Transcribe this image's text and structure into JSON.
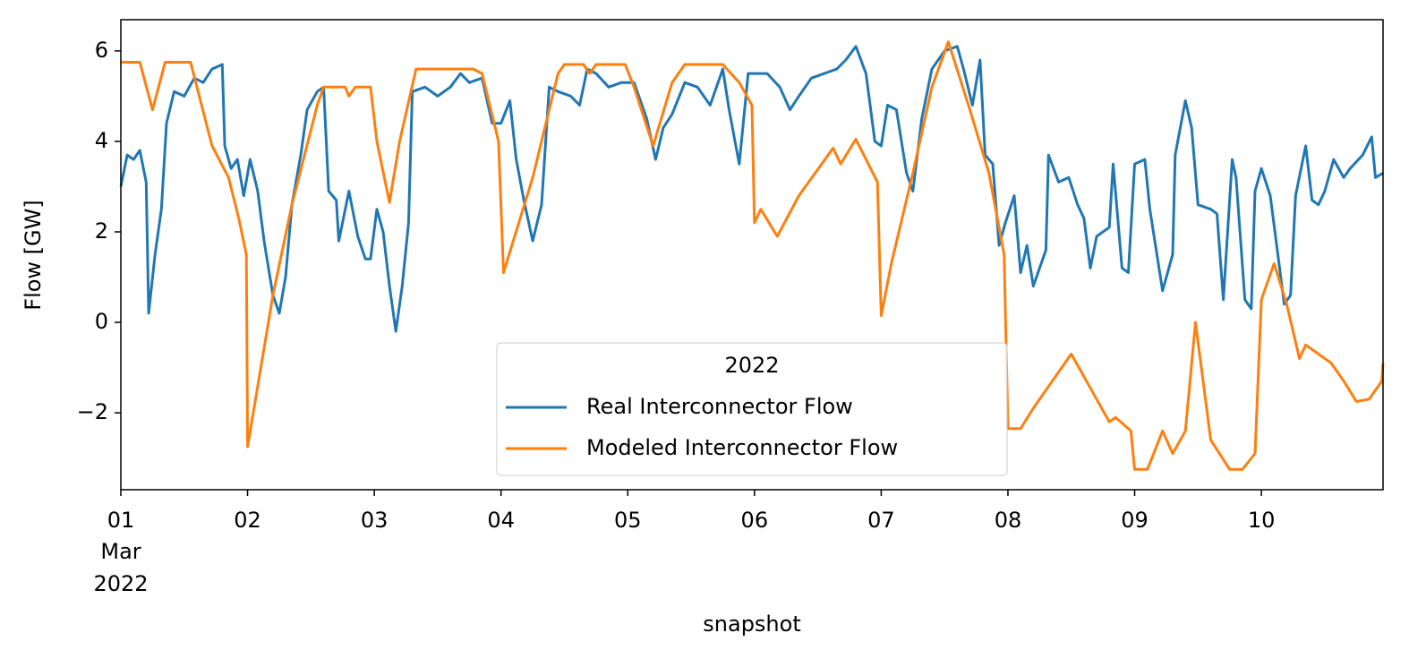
{
  "chart_data": {
    "type": "line",
    "y_label": "Flow [GW]",
    "x_label": "snapshot",
    "x_tick_sublabels": [
      "Mar",
      "2022"
    ],
    "legend_title": "2022",
    "legend": "lower center",
    "xlim": [
      1,
      10.96
    ],
    "ylim": [
      -3.7,
      6.69
    ],
    "xticks": [
      {
        "value": 1,
        "label": "01"
      },
      {
        "value": 2,
        "label": "02"
      },
      {
        "value": 3,
        "label": "03"
      },
      {
        "value": 4,
        "label": "04"
      },
      {
        "value": 5,
        "label": "05"
      },
      {
        "value": 6,
        "label": "06"
      },
      {
        "value": 7,
        "label": "07"
      },
      {
        "value": 8,
        "label": "08"
      },
      {
        "value": 9,
        "label": "09"
      },
      {
        "value": 10,
        "label": "10"
      }
    ],
    "yticks": [
      {
        "value": -2,
        "label": "−2"
      },
      0,
      2,
      4,
      6
    ],
    "series": [
      {
        "name": "Real Interconnector Flow",
        "color": "#1f77b4",
        "x": [
          1.0,
          1.05,
          1.1,
          1.15,
          1.2,
          1.22,
          1.27,
          1.32,
          1.36,
          1.42,
          1.5,
          1.58,
          1.65,
          1.72,
          1.8,
          1.82,
          1.87,
          1.92,
          1.97,
          2.02,
          2.08,
          2.13,
          2.2,
          2.25,
          2.3,
          2.35,
          2.42,
          2.47,
          2.55,
          2.6,
          2.64,
          2.7,
          2.72,
          2.8,
          2.87,
          2.93,
          2.97,
          3.02,
          3.07,
          3.12,
          3.17,
          3.22,
          3.27,
          3.3,
          3.4,
          3.5,
          3.6,
          3.68,
          3.75,
          3.85,
          3.93,
          4.0,
          4.07,
          4.12,
          4.18,
          4.25,
          4.32,
          4.38,
          4.45,
          4.55,
          4.62,
          4.68,
          4.75,
          4.85,
          4.95,
          5.05,
          5.15,
          5.22,
          5.28,
          5.35,
          5.45,
          5.55,
          5.65,
          5.75,
          5.8,
          5.88,
          5.95,
          6.0,
          6.1,
          6.2,
          6.28,
          6.35,
          6.45,
          6.55,
          6.65,
          6.72,
          6.8,
          6.88,
          6.95,
          7.0,
          7.05,
          7.12,
          7.2,
          7.25,
          7.32,
          7.4,
          7.5,
          7.6,
          7.65,
          7.72,
          7.78,
          7.82,
          7.88,
          7.93,
          7.98,
          8.05,
          8.1,
          8.15,
          8.2,
          8.3,
          8.32,
          8.4,
          8.48,
          8.55,
          8.6,
          8.65,
          8.7,
          8.8,
          8.83,
          8.9,
          8.95,
          9.0,
          9.08,
          9.12,
          9.22,
          9.3,
          9.32,
          9.4,
          9.45,
          9.5,
          9.6,
          9.65,
          9.7,
          9.77,
          9.8,
          9.87,
          9.92,
          9.95,
          10.0,
          10.07,
          10.13,
          10.18,
          10.23,
          10.27,
          10.35,
          10.4,
          10.45,
          10.5,
          10.57,
          10.65,
          10.7,
          10.8,
          10.87,
          10.9,
          10.96
        ],
        "values": [
          3.0,
          3.7,
          3.6,
          3.8,
          3.1,
          0.2,
          1.5,
          2.5,
          4.4,
          5.1,
          5.0,
          5.4,
          5.3,
          5.6,
          5.7,
          3.9,
          3.4,
          3.6,
          2.8,
          3.6,
          2.9,
          1.8,
          0.6,
          0.2,
          1.0,
          2.6,
          3.7,
          4.7,
          5.1,
          5.2,
          2.9,
          2.7,
          1.8,
          2.9,
          1.9,
          1.4,
          1.4,
          2.5,
          2.0,
          0.8,
          -0.2,
          0.8,
          2.2,
          5.1,
          5.2,
          5.0,
          5.2,
          5.5,
          5.3,
          5.4,
          4.4,
          4.4,
          4.9,
          3.6,
          2.7,
          1.8,
          2.6,
          5.2,
          5.1,
          5.0,
          4.8,
          5.6,
          5.5,
          5.2,
          5.3,
          5.3,
          4.5,
          3.6,
          4.3,
          4.6,
          5.3,
          5.2,
          4.8,
          5.6,
          4.7,
          3.5,
          5.5,
          5.5,
          5.5,
          5.2,
          4.7,
          5.0,
          5.4,
          5.5,
          5.6,
          5.8,
          6.1,
          5.5,
          4.0,
          3.9,
          4.8,
          4.7,
          3.3,
          2.9,
          4.5,
          5.6,
          6.0,
          6.1,
          5.6,
          4.8,
          5.8,
          3.7,
          3.5,
          1.7,
          2.2,
          2.8,
          1.1,
          1.7,
          0.8,
          1.6,
          3.7,
          3.1,
          3.2,
          2.6,
          2.3,
          1.2,
          1.9,
          2.1,
          3.5,
          1.2,
          1.1,
          3.5,
          3.6,
          2.5,
          0.7,
          1.5,
          3.7,
          4.9,
          4.3,
          2.6,
          2.5,
          2.4,
          0.5,
          3.6,
          3.2,
          0.5,
          0.3,
          2.9,
          3.4,
          2.8,
          1.5,
          0.4,
          0.6,
          2.8,
          3.9,
          2.7,
          2.6,
          2.9,
          3.6,
          3.2,
          3.4,
          3.7,
          4.1,
          3.2,
          3.3
        ]
      },
      {
        "name": "Modeled Interconnector Flow",
        "color": "#ff7f0e",
        "x": [
          1.0,
          1.15,
          1.25,
          1.35,
          1.55,
          1.72,
          1.85,
          1.93,
          1.99,
          2.0,
          2.2,
          2.35,
          2.55,
          2.6,
          2.77,
          2.8,
          2.85,
          2.97,
          3.02,
          3.12,
          3.2,
          3.33,
          3.78,
          3.85,
          3.98,
          4.02,
          4.25,
          4.45,
          4.5,
          4.65,
          4.7,
          4.75,
          4.98,
          5.05,
          5.2,
          5.35,
          5.45,
          5.75,
          5.88,
          5.98,
          6.0,
          6.05,
          6.18,
          6.35,
          6.62,
          6.68,
          6.8,
          6.97,
          7.0,
          7.08,
          7.25,
          7.4,
          7.53,
          7.7,
          7.85,
          7.97,
          8.0,
          8.1,
          8.2,
          8.3,
          8.5,
          8.8,
          8.85,
          8.97,
          9.0,
          9.1,
          9.15,
          9.22,
          9.3,
          9.4,
          9.48,
          9.6,
          9.75,
          9.85,
          9.95,
          10.0,
          10.1,
          10.2,
          10.3,
          10.35,
          10.55,
          10.65,
          10.75,
          10.85,
          10.95,
          10.96
        ],
        "values": [
          5.75,
          5.75,
          4.7,
          5.75,
          5.75,
          3.9,
          3.2,
          2.3,
          1.5,
          -2.75,
          0.6,
          2.6,
          4.8,
          5.2,
          5.2,
          5.0,
          5.2,
          5.2,
          4.0,
          2.65,
          4.0,
          5.6,
          5.6,
          5.5,
          4.0,
          1.1,
          3.2,
          5.5,
          5.7,
          5.7,
          5.5,
          5.7,
          5.7,
          5.2,
          3.9,
          5.3,
          5.7,
          5.7,
          5.3,
          4.8,
          2.2,
          2.5,
          1.9,
          2.8,
          3.85,
          3.5,
          4.05,
          3.1,
          0.15,
          1.3,
          3.3,
          5.2,
          6.2,
          4.7,
          3.3,
          1.5,
          -2.35,
          -2.35,
          -1.9,
          -1.5,
          -0.7,
          -2.2,
          -2.1,
          -2.4,
          -3.25,
          -3.25,
          -2.9,
          -2.4,
          -2.9,
          -2.4,
          0.0,
          -2.6,
          -3.25,
          -3.25,
          -2.9,
          0.5,
          1.3,
          0.4,
          -0.8,
          -0.5,
          -0.9,
          -1.3,
          -1.75,
          -1.7,
          -1.3,
          -0.9
        ]
      }
    ]
  }
}
